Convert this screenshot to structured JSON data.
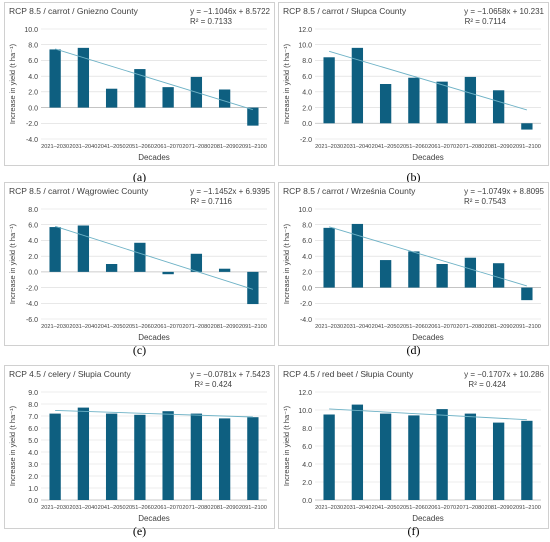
{
  "colors": {
    "bar": "#0e5f80",
    "trend": "#6eb2c6",
    "grid": "#d9d9d9",
    "axis": "#bfbfbf",
    "text": "#404040"
  },
  "decades": [
    "2021–2030",
    "2031–2040",
    "2041–2050",
    "2051–2060",
    "2061–2070",
    "2071–2080",
    "2081–2090",
    "2091–2100"
  ],
  "chart_data": [
    {
      "type": "bar",
      "caption": "(a)",
      "title": "RCP 8.5 / carrot / Gniezno County",
      "equation": "y = −1.1046x + 8.5722",
      "r2": "R² = 0.7133",
      "slope": -1.1046,
      "intercept": 8.5722,
      "xlabel": "Decades",
      "ylabel": "Increase in yield (t ha⁻¹)",
      "ylim": [
        -4,
        10
      ],
      "yticks": [
        "10.0",
        "8.0",
        "6.0",
        "4.0",
        "2.0",
        "0.0",
        "-2.0",
        "-4.0"
      ],
      "values": [
        7.4,
        7.6,
        2.4,
        4.9,
        2.6,
        3.9,
        2.3,
        -2.3
      ]
    },
    {
      "type": "bar",
      "caption": "(b)",
      "title": "RCP 8.5 / carrot / Słupca County",
      "equation": "y = −1.0658x + 10.231",
      "r2": "R² = 0.7114",
      "slope": -1.0658,
      "intercept": 10.231,
      "xlabel": "Decades",
      "ylabel": "Increase in yield (t ha⁻¹)",
      "ylim": [
        -2,
        12
      ],
      "yticks": [
        "12.0",
        "10.0",
        "8.0",
        "6.0",
        "4.0",
        "2.0",
        "0.0",
        "-2.0"
      ],
      "values": [
        8.4,
        9.6,
        5.0,
        5.8,
        5.3,
        5.9,
        4.2,
        -0.8
      ]
    },
    {
      "type": "bar",
      "caption": "(c)",
      "title": "RCP 8.5 / carrot / Wągrowiec County",
      "equation": "y = −1.1452x + 6.9395",
      "r2": "R² = 0.7116",
      "slope": -1.1452,
      "intercept": 6.9395,
      "xlabel": "Decades",
      "ylabel": "Increase in yield (t ha⁻¹)",
      "ylim": [
        -6,
        8
      ],
      "yticks": [
        "8.0",
        "6.0",
        "4.0",
        "2.0",
        "0.0",
        "-2.0",
        "-4.0",
        "-6.0"
      ],
      "values": [
        5.7,
        5.9,
        1.0,
        3.7,
        -0.3,
        2.3,
        0.4,
        -4.1
      ]
    },
    {
      "type": "bar",
      "caption": "(d)",
      "title": "RCP 8.5 / carrot / Września County",
      "equation": "y = −1.0749x + 8.8095",
      "r2": "R² = 0.7543",
      "slope": -1.0749,
      "intercept": 8.8095,
      "xlabel": "Decades",
      "ylabel": "Increase in yield (t ha⁻¹)",
      "ylim": [
        -4,
        10
      ],
      "yticks": [
        "10.0",
        "8.0",
        "6.0",
        "4.0",
        "2.0",
        "0.0",
        "-2.0",
        "-4.0"
      ],
      "values": [
        7.6,
        8.1,
        3.5,
        4.6,
        3.0,
        3.8,
        3.1,
        -1.6
      ]
    },
    {
      "type": "bar",
      "caption": "(e)",
      "title": "RCP 4.5  / celery / Słupia County",
      "equation": "y = −0.0781x + 7.5423",
      "r2": "R² = 0.424",
      "slope": -0.0781,
      "intercept": 7.5423,
      "xlabel": "Decades",
      "ylabel": "Increase in yield (t ha⁻¹)",
      "ylim": [
        0,
        9
      ],
      "yticks": [
        "9.0",
        "8.0",
        "7.0",
        "6.0",
        "5.0",
        "4.0",
        "3.0",
        "2.0",
        "1.0",
        "0.0"
      ],
      "values": [
        7.2,
        7.7,
        7.2,
        7.1,
        7.4,
        7.2,
        6.8,
        6.9
      ]
    },
    {
      "type": "bar",
      "caption": "(f)",
      "title": "RCP 4.5 / red beet / Słupia County",
      "equation": "y = −0.1707x + 10.286",
      "r2": "R² = 0.424",
      "slope": -0.1707,
      "intercept": 10.286,
      "xlabel": "Decades",
      "ylabel": "Increase in yield (t ha⁻¹)",
      "ylim": [
        0,
        12
      ],
      "yticks": [
        "12.0",
        "10.0",
        "8.0",
        "6.0",
        "4.0",
        "2.0",
        "0.0"
      ],
      "values": [
        9.5,
        10.6,
        9.6,
        9.4,
        10.1,
        9.6,
        8.6,
        8.8
      ]
    }
  ]
}
